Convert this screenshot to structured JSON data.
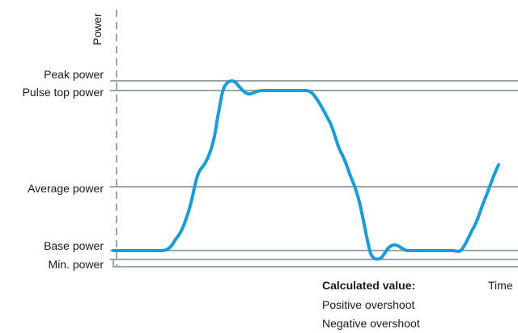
{
  "y_axis": {
    "label": "Power"
  },
  "x_axis": {
    "label": "Time"
  },
  "levels": [
    {
      "key": "peak",
      "label": "Peak power"
    },
    {
      "key": "pulse_top",
      "label": "Pulse top power"
    },
    {
      "key": "average",
      "label": "Average power"
    },
    {
      "key": "base",
      "label": "Base power"
    },
    {
      "key": "min",
      "label": "Min. power"
    }
  ],
  "legend": {
    "heading": "Calculated value:",
    "items": [
      "Positive overshoot",
      "Negative overshoot"
    ]
  },
  "colors": {
    "waveform": "#1a9bdb",
    "level_line": "#9aa4ad",
    "axis": "#9aa4ad",
    "text": "#1a1a1a"
  }
}
